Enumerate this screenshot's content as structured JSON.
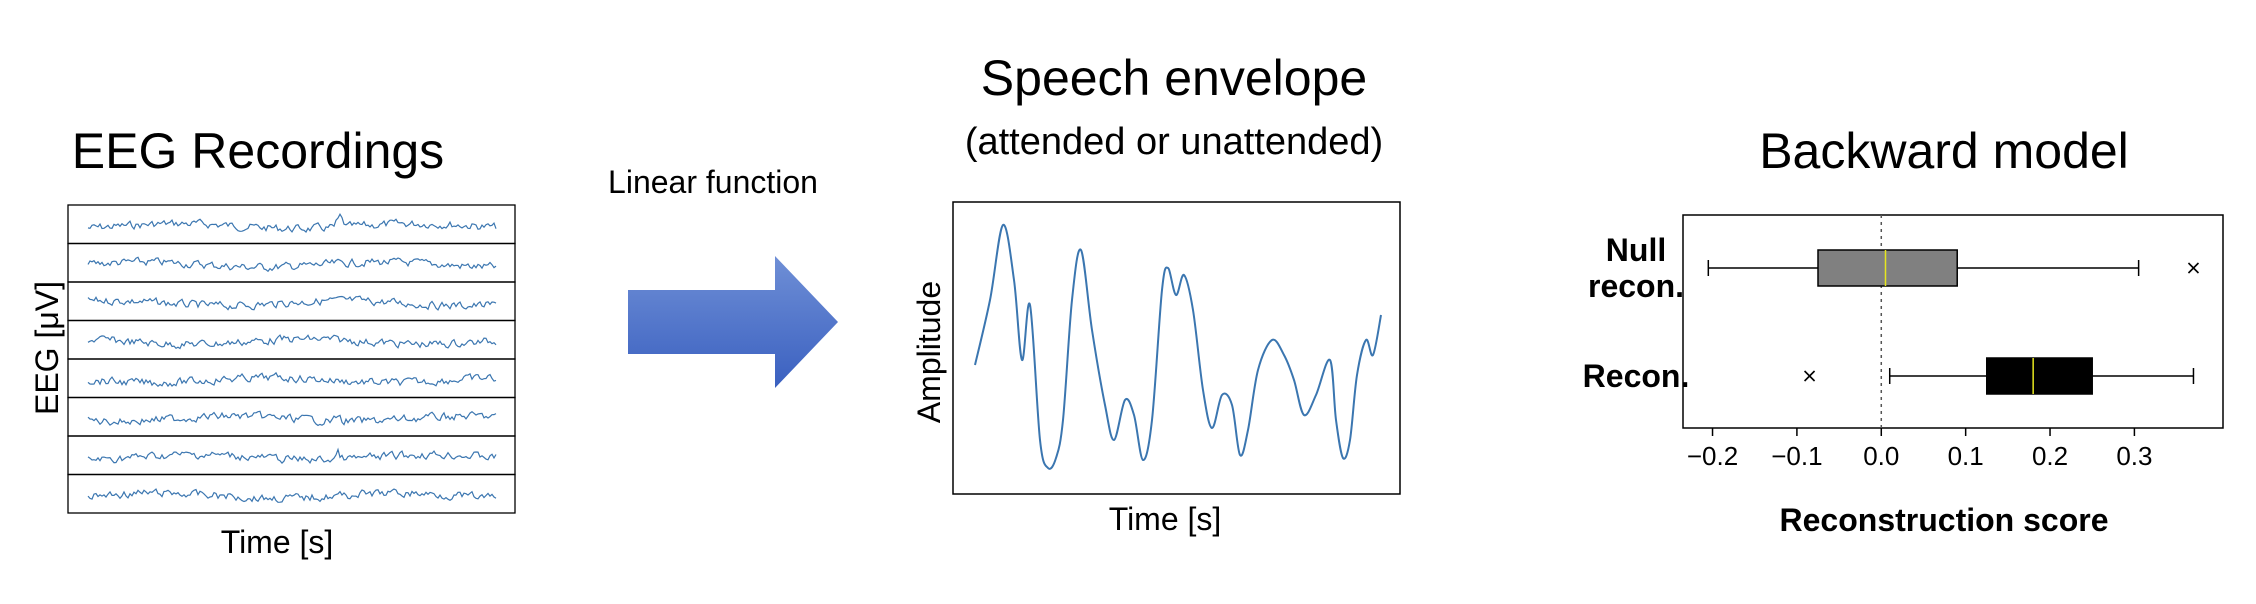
{
  "eeg_panel": {
    "title": "EEG Recordings",
    "ylabel": "EEG [μV]",
    "xlabel": "Time [s]",
    "channel_count": 8,
    "trace_color": "#3b76b0"
  },
  "arrow": {
    "label": "Linear function",
    "color_top": "#6f8fd6",
    "color_bottom": "#3a60c0"
  },
  "envelope_panel": {
    "title": "Speech envelope",
    "subtitle": "(attended or unattended)",
    "ylabel": "Amplitude",
    "xlabel": "Time [s]",
    "line_color": "#3b76b0"
  },
  "chart_data": {
    "type": "box",
    "title": "Backward model",
    "xlabel": "Reconstruction score",
    "ylabel": "",
    "xlim": [
      -0.235,
      0.405
    ],
    "x_ticks": [
      -0.2,
      -0.1,
      0.0,
      0.1,
      0.2,
      0.3
    ],
    "x_tick_labels": [
      "−0.2",
      "−0.1",
      "0.0",
      "0.1",
      "0.2",
      "0.3"
    ],
    "reference_line": 0.0,
    "grid": false,
    "series": [
      {
        "name": "Null recon.",
        "label_lines": [
          "Null",
          "recon."
        ],
        "whisker_low": -0.205,
        "q1": -0.075,
        "median": 0.005,
        "q3": 0.09,
        "whisker_high": 0.305,
        "outliers": [
          0.37
        ],
        "color": "#808080"
      },
      {
        "name": "Recon.",
        "label_lines": [
          "Recon."
        ],
        "whisker_low": 0.01,
        "q1": 0.125,
        "median": 0.18,
        "q3": 0.25,
        "whisker_high": 0.37,
        "outliers": [
          -0.085
        ],
        "color": "#000000"
      }
    ],
    "median_color": "#e6e61e"
  }
}
